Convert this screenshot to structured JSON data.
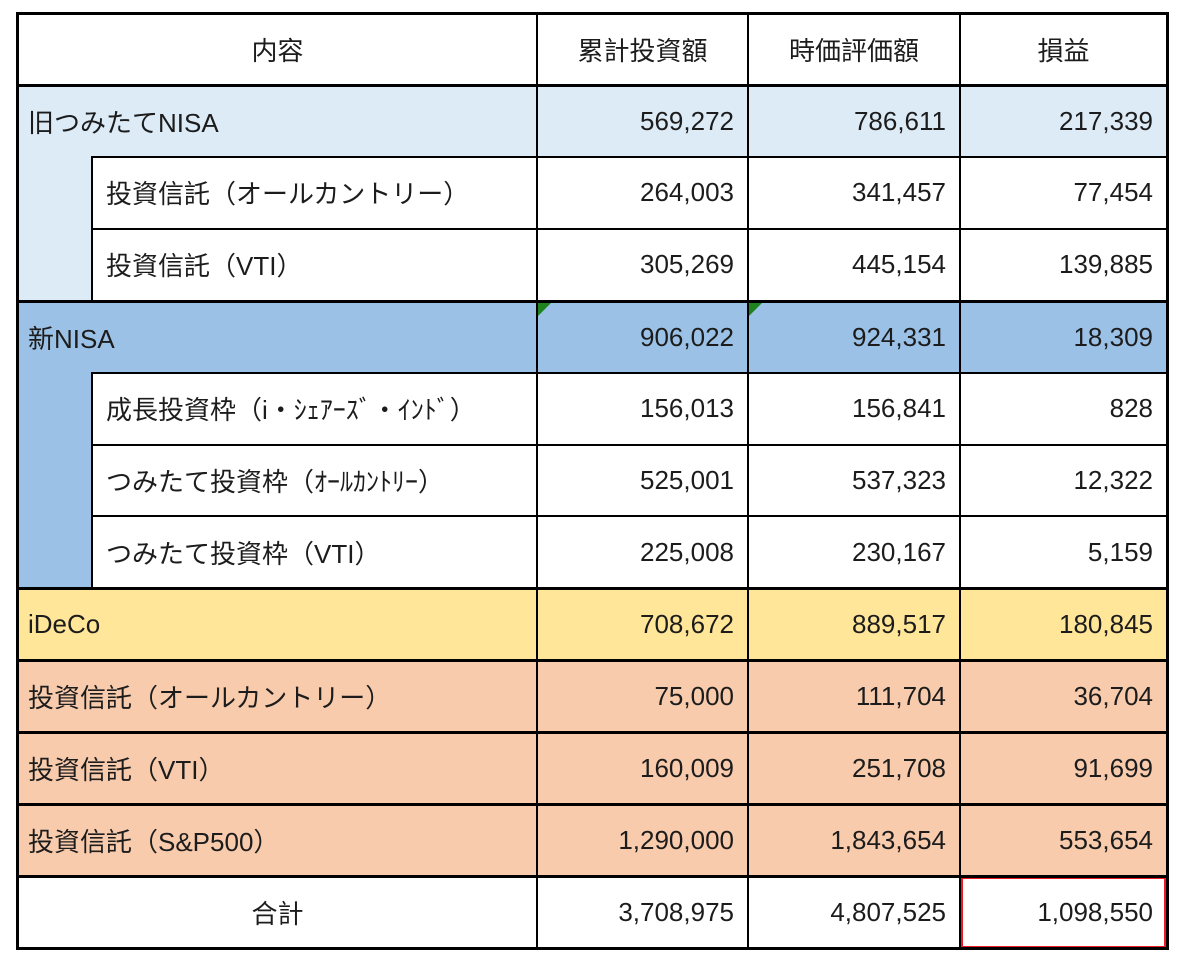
{
  "table": {
    "columns": [
      "内容",
      "累計投資額",
      "時価評価額",
      "損益"
    ],
    "rows": [
      {
        "kind": "section",
        "bg": "light_blue",
        "label": "旧つみたてNISA",
        "values": [
          "569,272",
          "786,611",
          "217,339"
        ],
        "border_top": "thick"
      },
      {
        "kind": "sub",
        "stripe": "light_blue",
        "label": "投資信託（オールカントリー）",
        "values": [
          "264,003",
          "341,457",
          "77,454"
        ],
        "border_top": "thin"
      },
      {
        "kind": "sub",
        "stripe": "light_blue",
        "label": "投資信託（VTI）",
        "values": [
          "305,269",
          "445,154",
          "139,885"
        ],
        "border_top": "thin"
      },
      {
        "kind": "section",
        "bg": "medium_blue",
        "label": "新NISA",
        "values": [
          "906,022",
          "924,331",
          "18,309"
        ],
        "border_top": "thick",
        "triangles": [
          0,
          1
        ]
      },
      {
        "kind": "sub",
        "stripe": "medium_blue",
        "label": "成長投資枠（i・ｼｪｱｰｽﾞ・ｲﾝﾄﾞ）",
        "values": [
          "156,013",
          "156,841",
          "828"
        ],
        "border_top": "thin"
      },
      {
        "kind": "sub",
        "stripe": "medium_blue",
        "label": "つみたて投資枠（ｵｰﾙｶﾝﾄﾘｰ）",
        "values": [
          "525,001",
          "537,323",
          "12,322"
        ],
        "border_top": "thin"
      },
      {
        "kind": "sub",
        "stripe": "medium_blue",
        "label": "つみたて投資枠（VTI）",
        "values": [
          "225,008",
          "230,167",
          "5,159"
        ],
        "border_top": "thin"
      },
      {
        "kind": "section",
        "bg": "yellow",
        "label": "iDeCo",
        "values": [
          "708,672",
          "889,517",
          "180,845"
        ],
        "border_top": "thick"
      },
      {
        "kind": "section",
        "bg": "orange",
        "label": "投資信託（オールカントリー）",
        "values": [
          "75,000",
          "111,704",
          "36,704"
        ],
        "border_top": "thick"
      },
      {
        "kind": "section",
        "bg": "orange",
        "label": "投資信託（VTI）",
        "values": [
          "160,009",
          "251,708",
          "91,699"
        ],
        "border_top": "thick"
      },
      {
        "kind": "section",
        "bg": "orange",
        "label": "投資信託（S&P500）",
        "values": [
          "1,290,000",
          "1,843,654",
          "553,654"
        ],
        "border_top": "thick"
      },
      {
        "kind": "total",
        "label": "合計",
        "values": [
          "3,708,975",
          "4,807,525",
          "1,098,550"
        ],
        "border_top": "thick",
        "red_box": 2
      }
    ]
  },
  "colors": {
    "light_blue": "#DDEBF7",
    "medium_blue": "#9BC2E6",
    "yellow": "#FFE699",
    "orange": "#F8CBAD",
    "border": "#000000",
    "text": "#1C1C1C",
    "red_highlight": "#ED1C24",
    "green_flag": "#1E821E"
  }
}
